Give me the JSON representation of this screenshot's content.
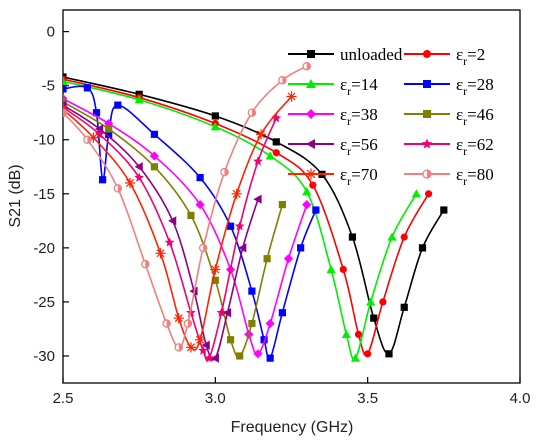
{
  "chart_data": {
    "type": "line",
    "xlabel": "Frequency (GHz)",
    "ylabel": "S21 (dB)",
    "xlim": [
      2.5,
      4.0
    ],
    "ylim": [
      -32.5,
      2.0
    ],
    "xticks": [
      "2.5",
      "3.0",
      "3.5",
      "4.0"
    ],
    "yticks": [
      "0",
      "-5",
      "-10",
      "-15",
      "-20",
      "-25",
      "-30"
    ],
    "legend_placement": "top-right",
    "series": [
      {
        "name": "unloaded",
        "label_base": "unloaded",
        "label_sub": "",
        "label_suffix": "",
        "color": "#000000",
        "marker": "square",
        "x": [
          2.5,
          2.75,
          3.0,
          3.2,
          3.35,
          3.45,
          3.52,
          3.57,
          3.62,
          3.68,
          3.75
        ],
        "y": [
          -4.2,
          -5.8,
          -7.8,
          -10.2,
          -13.2,
          -19.0,
          -26.5,
          -29.8,
          -25.5,
          -20.0,
          -16.5
        ]
      },
      {
        "name": "εr=2",
        "label_base": "ε",
        "label_sub": "r",
        "label_suffix": "=2",
        "color": "#ff0000",
        "marker": "circle",
        "x": [
          2.5,
          2.75,
          3.0,
          3.2,
          3.32,
          3.42,
          3.47,
          3.5,
          3.55,
          3.62,
          3.7
        ],
        "y": [
          -4.4,
          -6.1,
          -8.5,
          -11.2,
          -14.2,
          -22.0,
          -28.0,
          -29.8,
          -25.0,
          -19.0,
          -15.0
        ]
      },
      {
        "name": "εr=14",
        "label_base": "ε",
        "label_sub": "r",
        "label_suffix": "=14",
        "color": "#00ee00",
        "marker": "triangle-up",
        "x": [
          2.5,
          2.75,
          3.0,
          3.18,
          3.3,
          3.38,
          3.43,
          3.46,
          3.51,
          3.58,
          3.66
        ],
        "y": [
          -4.6,
          -6.3,
          -8.8,
          -11.5,
          -14.8,
          -22.0,
          -28.0,
          -30.2,
          -25.0,
          -19.0,
          -15.0
        ]
      },
      {
        "name": "εr=28",
        "label_base": "ε",
        "label_sub": "r",
        "label_suffix": "=28",
        "color": "#0000ff",
        "marker": "square",
        "x": [
          2.5,
          2.58,
          2.61,
          2.63,
          2.65,
          2.68,
          2.8,
          2.95,
          3.05,
          3.12,
          3.16,
          3.18,
          3.22,
          3.28,
          3.33
        ],
        "y": [
          -5.3,
          -5.2,
          -7.5,
          -13.7,
          -9.5,
          -6.8,
          -9.5,
          -13.5,
          -18.0,
          -24.0,
          -28.5,
          -30.2,
          -26.0,
          -20.0,
          -16.5
        ]
      },
      {
        "name": "εr=38",
        "label_base": "ε",
        "label_sub": "r",
        "label_suffix": "=38",
        "color": "#ff00ff",
        "marker": "diamond",
        "x": [
          2.5,
          2.65,
          2.8,
          2.95,
          3.05,
          3.11,
          3.14,
          3.18,
          3.24,
          3.3
        ],
        "y": [
          -6.2,
          -8.5,
          -11.5,
          -16.0,
          -22.0,
          -28.0,
          -29.8,
          -27.0,
          -21.0,
          -16.0
        ]
      },
      {
        "name": "εr=46",
        "label_base": "ε",
        "label_sub": "r",
        "label_suffix": "=46",
        "color": "#808000",
        "marker": "square",
        "x": [
          2.5,
          2.65,
          2.8,
          2.92,
          3.0,
          3.05,
          3.08,
          3.12,
          3.17,
          3.22
        ],
        "y": [
          -6.5,
          -9.0,
          -12.5,
          -17.0,
          -23.0,
          -28.5,
          -30.0,
          -27.0,
          -21.0,
          -16.0
        ]
      },
      {
        "name": "εr=56",
        "label_base": "ε",
        "label_sub": "r",
        "label_suffix": "=56",
        "color": "#8b008b",
        "marker": "triangle-left",
        "x": [
          2.5,
          2.62,
          2.75,
          2.86,
          2.93,
          2.97,
          3.0,
          3.04,
          3.09,
          3.14
        ],
        "y": [
          -6.8,
          -9.0,
          -12.5,
          -17.5,
          -24.0,
          -29.0,
          -30.2,
          -26.0,
          -20.0,
          -15.5
        ]
      },
      {
        "name": "εr=62",
        "label_base": "ε",
        "label_sub": "r",
        "label_suffix": "=62",
        "color": "#ee0077",
        "marker": "star",
        "x": [
          2.5,
          2.62,
          2.75,
          2.85,
          2.92,
          2.96,
          2.98,
          3.02,
          3.08,
          3.14,
          3.2
        ],
        "y": [
          -7.0,
          -9.5,
          -13.5,
          -19.5,
          -26.0,
          -29.5,
          -30.2,
          -26.0,
          -18.0,
          -12.0,
          -8.0
        ]
      },
      {
        "name": "εr=70",
        "label_base": "ε",
        "label_sub": "r",
        "label_suffix": "=70",
        "color": "#ff2200",
        "marker": "asterisk",
        "x": [
          2.5,
          2.6,
          2.72,
          2.82,
          2.88,
          2.92,
          2.95,
          3.0,
          3.07,
          3.15,
          3.25
        ],
        "y": [
          -7.2,
          -9.8,
          -14.0,
          -20.5,
          -26.5,
          -29.2,
          -28.5,
          -22.0,
          -15.0,
          -9.5,
          -6.0
        ]
      },
      {
        "name": "εr=80",
        "label_base": "ε",
        "label_sub": "r",
        "label_suffix": "=80",
        "color": "#f08080",
        "marker": "circle-half",
        "x": [
          2.5,
          2.58,
          2.68,
          2.77,
          2.84,
          2.88,
          2.91,
          2.96,
          3.03,
          3.12,
          3.22,
          3.3
        ],
        "y": [
          -7.5,
          -10.0,
          -14.5,
          -21.5,
          -27.0,
          -29.2,
          -27.0,
          -20.0,
          -13.0,
          -7.5,
          -4.5,
          -3.2
        ]
      }
    ]
  }
}
